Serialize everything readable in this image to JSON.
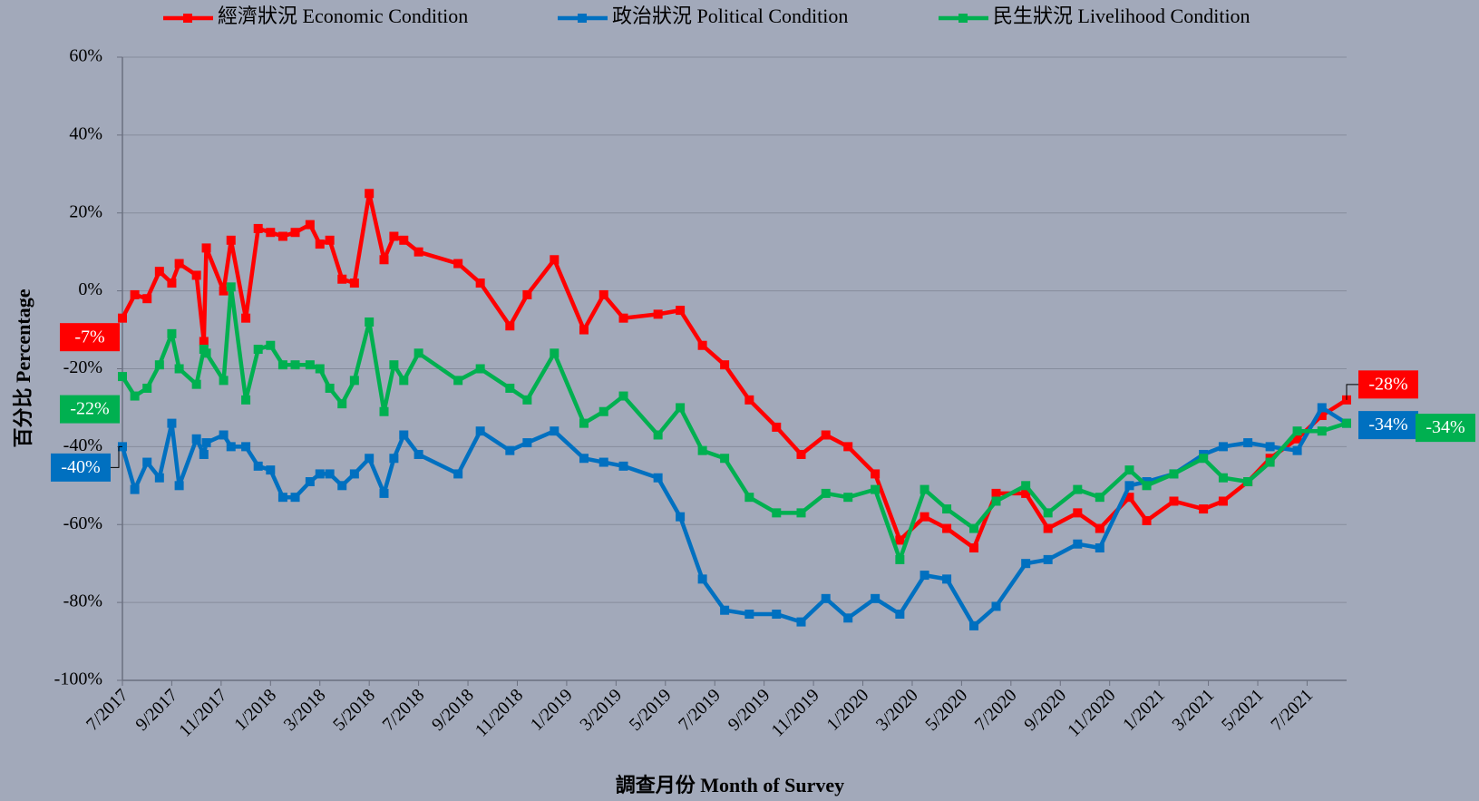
{
  "chart_data": {
    "type": "line",
    "xlabel": "調查月份 Month of Survey",
    "ylabel": "百分比 Percentage",
    "x": [
      0,
      0.5,
      1.0,
      1.5,
      2.0,
      2.3,
      3.0,
      3.3,
      3.4,
      4.1,
      4.4,
      5.0,
      5.5,
      6.0,
      6.5,
      7.0,
      7.6,
      8.0,
      8.4,
      8.9,
      9.4,
      10.0,
      10.6,
      11.0,
      11.4,
      12.0,
      13.6,
      14.5,
      15.7,
      16.4,
      17.5,
      18.7,
      19.5,
      20.3,
      21.7,
      22.6,
      23.5,
      24.4,
      25.4,
      26.5,
      27.5,
      28.5,
      29.4,
      30.5,
      31.5,
      32.5,
      33.4,
      34.5,
      35.4,
      36.6,
      37.5,
      38.7,
      39.6,
      40.8,
      41.5,
      42.6,
      43.8,
      44.6,
      45.6,
      46.5,
      47.6,
      48.6,
      49.6
    ],
    "xlim": [
      0,
      49.6
    ],
    "xticks": [
      {
        "value": 0,
        "label": "7/2017"
      },
      {
        "value": 2,
        "label": "9/2017"
      },
      {
        "value": 4,
        "label": "11/2017"
      },
      {
        "value": 6,
        "label": "1/2018"
      },
      {
        "value": 8,
        "label": "3/2018"
      },
      {
        "value": 10,
        "label": "5/2018"
      },
      {
        "value": 12,
        "label": "7/2018"
      },
      {
        "value": 14,
        "label": "9/2018"
      },
      {
        "value": 16,
        "label": "11/2018"
      },
      {
        "value": 18,
        "label": "1/2019"
      },
      {
        "value": 20,
        "label": "3/2019"
      },
      {
        "value": 22,
        "label": "5/2019"
      },
      {
        "value": 24,
        "label": "7/2019"
      },
      {
        "value": 26,
        "label": "9/2019"
      },
      {
        "value": 28,
        "label": "11/2019"
      },
      {
        "value": 30,
        "label": "1/2020"
      },
      {
        "value": 32,
        "label": "3/2020"
      },
      {
        "value": 34,
        "label": "5/2020"
      },
      {
        "value": 36,
        "label": "7/2020"
      },
      {
        "value": 38,
        "label": "9/2020"
      },
      {
        "value": 40,
        "label": "11/2020"
      },
      {
        "value": 42,
        "label": "1/2021"
      },
      {
        "value": 44,
        "label": "3/2021"
      },
      {
        "value": 46,
        "label": "5/2021"
      },
      {
        "value": 48,
        "label": "7/2021"
      }
    ],
    "ylim": [
      -100,
      60
    ],
    "yticks": [
      {
        "value": -100,
        "label": "-100%"
      },
      {
        "value": -80,
        "label": "-80%"
      },
      {
        "value": -60,
        "label": "-60%"
      },
      {
        "value": -40,
        "label": "-40%"
      },
      {
        "value": -20,
        "label": "-20%"
      },
      {
        "value": 0,
        "label": "0%"
      },
      {
        "value": 20,
        "label": "20%"
      },
      {
        "value": 40,
        "label": "40%"
      },
      {
        "value": 60,
        "label": "60%"
      }
    ],
    "grid": true,
    "legend": "top",
    "series": [
      {
        "name": "經濟狀況 Economic Condition",
        "color": "#ff0000",
        "values": [
          -7,
          -1,
          -2,
          5,
          2,
          7,
          4,
          -13,
          11,
          0,
          13,
          -7,
          16,
          15,
          14,
          15,
          17,
          12,
          13,
          3,
          2,
          25,
          8,
          14,
          13,
          10,
          7,
          2,
          -9,
          -1,
          8,
          -10,
          -1,
          -7,
          -6,
          -5,
          -14,
          -19,
          -28,
          -35,
          -42,
          -37,
          -40,
          -47,
          -64,
          -58,
          -61,
          -66,
          -52,
          -52,
          -61,
          -57,
          -61,
          -53,
          -59,
          -54,
          -56,
          -54,
          -49,
          -43,
          -38,
          -32,
          -28
        ],
        "value_labels": [
          "-7%",
          null,
          null,
          null,
          null,
          null,
          null,
          null,
          null,
          null,
          null,
          null,
          null,
          null,
          null,
          null,
          null,
          null,
          null,
          null,
          null,
          null,
          null,
          null,
          null,
          null,
          null,
          null,
          null,
          null,
          null,
          null,
          null,
          null,
          null,
          null,
          null,
          null,
          null,
          null,
          null,
          null,
          null,
          null,
          null,
          null,
          null,
          null,
          null,
          null,
          null,
          null,
          null,
          null,
          null,
          null,
          null,
          null,
          null,
          null,
          null,
          null,
          "-28%"
        ]
      },
      {
        "name": "政治狀況 Political Condition",
        "color": "#0070c0",
        "values": [
          -40,
          -51,
          -44,
          -48,
          -34,
          -50,
          -38,
          -42,
          -39,
          -37,
          -40,
          -40,
          -45,
          -46,
          -53,
          -53,
          -49,
          -47,
          -47,
          -50,
          -47,
          -43,
          -52,
          -43,
          -37,
          -42,
          -47,
          -36,
          -41,
          -39,
          -36,
          -43,
          -44,
          -45,
          -48,
          -58,
          -74,
          -82,
          -83,
          -83,
          -85,
          -79,
          -84,
          -79,
          -83,
          -73,
          -74,
          -86,
          -81,
          -70,
          -69,
          -65,
          -66,
          -50,
          -49,
          -47,
          -42,
          -40,
          -39,
          -40,
          -41,
          -30,
          -34
        ],
        "value_labels": [
          "-40%",
          null,
          null,
          null,
          null,
          null,
          null,
          null,
          null,
          null,
          null,
          null,
          null,
          null,
          null,
          null,
          null,
          null,
          null,
          null,
          null,
          null,
          null,
          null,
          null,
          null,
          null,
          null,
          null,
          null,
          null,
          null,
          null,
          null,
          null,
          null,
          null,
          null,
          null,
          null,
          null,
          null,
          null,
          null,
          null,
          null,
          null,
          null,
          null,
          null,
          null,
          null,
          null,
          null,
          null,
          null,
          null,
          null,
          null,
          null,
          null,
          null,
          "-34%"
        ]
      },
      {
        "name": "民生狀況 Livelihood Condition",
        "color": "#00b050",
        "values": [
          -22,
          -27,
          -25,
          -19,
          -11,
          -20,
          -24,
          -15,
          -16,
          -23,
          1,
          -28,
          -15,
          -14,
          -19,
          -19,
          -19,
          -20,
          -25,
          -29,
          -23,
          -8,
          -31,
          -19,
          -23,
          -16,
          -23,
          -20,
          -25,
          -28,
          -16,
          -34,
          -31,
          -27,
          -37,
          -30,
          -41,
          -43,
          -53,
          -57,
          -57,
          -52,
          -53,
          -51,
          -69,
          -51,
          -56,
          -61,
          -54,
          -50,
          -57,
          -51,
          -53,
          -46,
          -50,
          -47,
          -43,
          -48,
          -49,
          -44,
          -36,
          -36,
          -34
        ],
        "value_labels": [
          "-22%",
          null,
          null,
          null,
          null,
          null,
          null,
          null,
          null,
          null,
          null,
          null,
          null,
          null,
          null,
          null,
          null,
          null,
          null,
          null,
          null,
          null,
          null,
          null,
          null,
          null,
          null,
          null,
          null,
          null,
          null,
          null,
          null,
          null,
          null,
          null,
          null,
          null,
          null,
          null,
          null,
          null,
          null,
          null,
          null,
          null,
          null,
          null,
          null,
          null,
          null,
          null,
          null,
          null,
          null,
          null,
          null,
          null,
          null,
          null,
          null,
          null,
          "-34%"
        ]
      }
    ]
  }
}
